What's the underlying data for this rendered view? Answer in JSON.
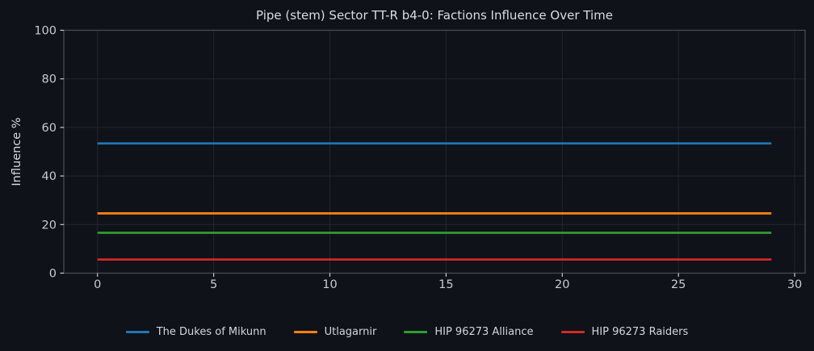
{
  "chart_data": {
    "type": "line",
    "title": "Pipe (stem) Sector TT-R b4-0: Factions Influence Over Time",
    "xlabel": "",
    "ylabel": "Influence %",
    "x": [
      0,
      1,
      2,
      3,
      4,
      5,
      6,
      7,
      8,
      9,
      10,
      11,
      12,
      13,
      14,
      15,
      16,
      17,
      18,
      19,
      20,
      21,
      22,
      23,
      24,
      25,
      26,
      27,
      28,
      29
    ],
    "series": [
      {
        "name": "The Dukes of Mikunn",
        "color": "#1f77b4",
        "values": [
          53.4,
          53.4,
          53.4,
          53.4,
          53.4,
          53.4,
          53.4,
          53.4,
          53.4,
          53.4,
          53.4,
          53.4,
          53.4,
          53.4,
          53.4,
          53.4,
          53.4,
          53.4,
          53.4,
          53.4,
          53.4,
          53.4,
          53.4,
          53.4,
          53.4,
          53.4,
          53.4,
          53.4,
          53.4,
          53.4
        ]
      },
      {
        "name": "Utlagarnir",
        "color": "#ff7f0e",
        "values": [
          24.6,
          24.6,
          24.6,
          24.6,
          24.6,
          24.6,
          24.6,
          24.6,
          24.6,
          24.6,
          24.6,
          24.6,
          24.6,
          24.6,
          24.6,
          24.6,
          24.6,
          24.6,
          24.6,
          24.6,
          24.6,
          24.6,
          24.6,
          24.6,
          24.6,
          24.6,
          24.6,
          24.6,
          24.6,
          24.6
        ]
      },
      {
        "name": "HIP 96273 Alliance",
        "color": "#2ca02c",
        "values": [
          16.6,
          16.6,
          16.6,
          16.6,
          16.6,
          16.6,
          16.6,
          16.6,
          16.6,
          16.6,
          16.6,
          16.6,
          16.6,
          16.6,
          16.6,
          16.6,
          16.6,
          16.6,
          16.6,
          16.6,
          16.6,
          16.6,
          16.6,
          16.6,
          16.6,
          16.6,
          16.6,
          16.6,
          16.6,
          16.6
        ]
      },
      {
        "name": "HIP 96273 Raiders",
        "color": "#d62728",
        "values": [
          5.6,
          5.6,
          5.6,
          5.6,
          5.6,
          5.6,
          5.6,
          5.6,
          5.6,
          5.6,
          5.6,
          5.6,
          5.6,
          5.6,
          5.6,
          5.6,
          5.6,
          5.6,
          5.6,
          5.6,
          5.6,
          5.6,
          5.6,
          5.6,
          5.6,
          5.6,
          5.6,
          5.6,
          5.6,
          5.6
        ]
      }
    ],
    "xticks": [
      0,
      5,
      10,
      15,
      20,
      25,
      30
    ],
    "yticks": [
      0,
      20,
      40,
      60,
      80,
      100
    ],
    "xlim": [
      -1.45,
      30.45
    ],
    "ylim": [
      0,
      100
    ],
    "grid": true,
    "legend_position": "bottom"
  },
  "theme": {
    "figure_bg": "#0f1218",
    "axes_bg": "#0f1218",
    "grid_color": "#23262e",
    "spine_color": "#4a4e56",
    "tick_color": "#c9cbcf",
    "text_color": "#dadce0",
    "line_width": 2.8
  }
}
